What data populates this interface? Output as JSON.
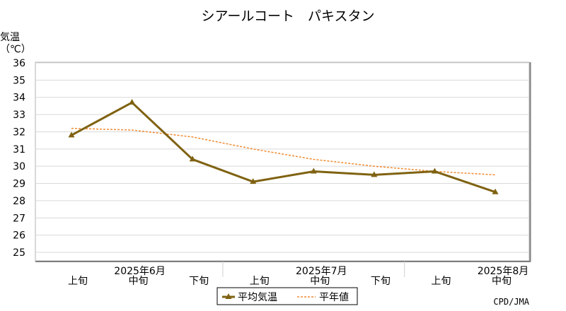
{
  "chart_data": {
    "type": "line",
    "title": "シアールコート　パキスタン",
    "ylabel": "気温\n（℃）",
    "ylim": [
      25,
      36
    ],
    "yticks": [
      25,
      26,
      27,
      28,
      29,
      30,
      31,
      32,
      33,
      34,
      35,
      36
    ],
    "categories": [
      "上旬",
      "中旬",
      "下旬",
      "上旬",
      "中旬",
      "下旬",
      "上旬",
      "中旬"
    ],
    "months": [
      {
        "label": "2025年6月",
        "at": 1
      },
      {
        "label": "2025年7月",
        "at": 4
      },
      {
        "label": "2025年8月",
        "at": 7
      }
    ],
    "series": [
      {
        "name": "平均気温",
        "color": "#7f6211",
        "style": "solid-triangle",
        "values": [
          31.8,
          33.7,
          30.4,
          29.1,
          29.7,
          29.5,
          29.7,
          28.5
        ]
      },
      {
        "name": "平年値",
        "color": "#f08a30",
        "style": "dashed",
        "values": [
          32.2,
          32.1,
          31.7,
          31.0,
          30.4,
          30.0,
          29.7,
          29.5
        ]
      }
    ],
    "grid": true,
    "legend": "bottom-center",
    "source": "CPD/JMA"
  }
}
